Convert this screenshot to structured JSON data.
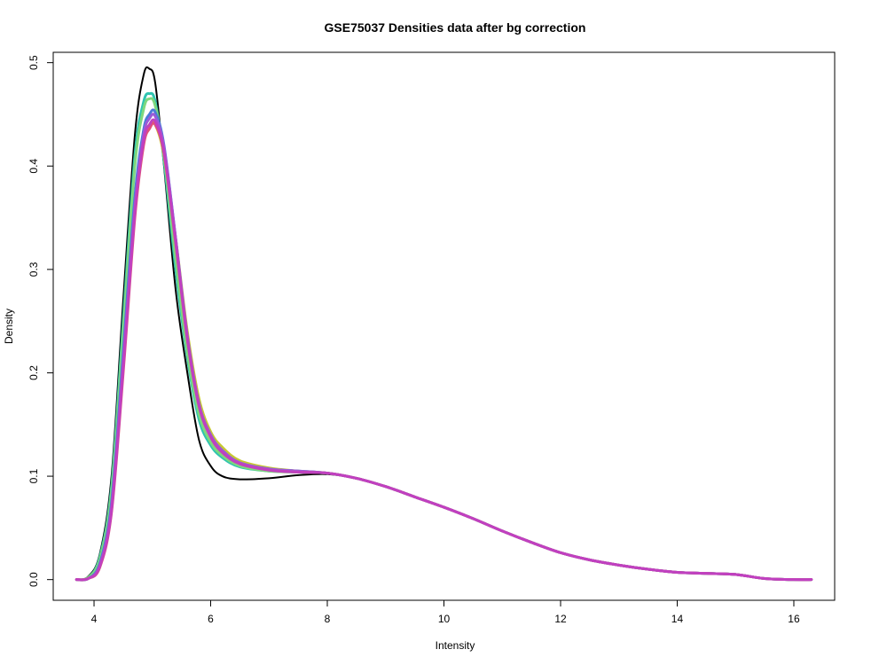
{
  "chart_data": {
    "type": "line",
    "title": "GSE75037 Densities data after bg correction",
    "xlabel": "Intensity",
    "ylabel": "Density",
    "xlim": [
      3.3,
      16.7
    ],
    "ylim": [
      -0.02,
      0.51
    ],
    "x_ticks": [
      4,
      6,
      8,
      10,
      12,
      14,
      16
    ],
    "y_ticks": [
      0.0,
      0.1,
      0.2,
      0.3,
      0.4,
      0.5
    ],
    "grid": false,
    "legend": "none",
    "x": [
      3.7,
      3.9,
      4.1,
      4.3,
      4.5,
      4.7,
      4.85,
      4.95,
      5.05,
      5.2,
      5.4,
      5.6,
      5.8,
      6.0,
      6.2,
      6.5,
      7.0,
      7.5,
      8.0,
      8.5,
      9.0,
      9.5,
      10.0,
      10.5,
      11.0,
      11.5,
      12.0,
      12.5,
      13.0,
      13.5,
      14.0,
      14.5,
      15.0,
      15.5,
      16.0,
      16.3
    ],
    "series": [
      {
        "color": "#000000",
        "values": [
          0.0,
          0.003,
          0.025,
          0.1,
          0.27,
          0.43,
          0.488,
          0.494,
          0.48,
          0.4,
          0.28,
          0.2,
          0.135,
          0.11,
          0.1,
          0.097,
          0.098,
          0.101,
          0.102,
          0.098,
          0.09,
          0.08,
          0.07,
          0.059,
          0.047,
          0.036,
          0.026,
          0.019,
          0.014,
          0.01,
          0.007,
          0.006,
          0.005,
          0.001,
          0.0,
          0.0
        ]
      },
      {
        "color": "#2fc4b0",
        "values": [
          0.0,
          0.002,
          0.022,
          0.09,
          0.25,
          0.41,
          0.462,
          0.47,
          0.462,
          0.405,
          0.3,
          0.215,
          0.155,
          0.13,
          0.118,
          0.109,
          0.105,
          0.104,
          0.103,
          0.098,
          0.09,
          0.08,
          0.07,
          0.059,
          0.047,
          0.036,
          0.026,
          0.019,
          0.014,
          0.01,
          0.007,
          0.006,
          0.005,
          0.001,
          0.0,
          0.0
        ]
      },
      {
        "color": "#7ed87e",
        "values": [
          0.0,
          0.002,
          0.02,
          0.085,
          0.24,
          0.4,
          0.455,
          0.465,
          0.458,
          0.41,
          0.31,
          0.22,
          0.16,
          0.133,
          0.12,
          0.11,
          0.105,
          0.104,
          0.103,
          0.098,
          0.09,
          0.08,
          0.07,
          0.059,
          0.047,
          0.036,
          0.026,
          0.019,
          0.014,
          0.01,
          0.007,
          0.006,
          0.005,
          0.001,
          0.0,
          0.0
        ]
      },
      {
        "color": "#c8c832",
        "values": [
          0.0,
          0.001,
          0.015,
          0.07,
          0.21,
          0.36,
          0.425,
          0.44,
          0.44,
          0.41,
          0.33,
          0.24,
          0.175,
          0.143,
          0.128,
          0.115,
          0.108,
          0.105,
          0.103,
          0.098,
          0.09,
          0.08,
          0.07,
          0.059,
          0.047,
          0.036,
          0.026,
          0.019,
          0.014,
          0.01,
          0.007,
          0.006,
          0.005,
          0.001,
          0.0,
          0.0
        ]
      },
      {
        "color": "#4a7bd8",
        "values": [
          0.0,
          0.001,
          0.016,
          0.075,
          0.22,
          0.37,
          0.435,
          0.45,
          0.452,
          0.42,
          0.33,
          0.235,
          0.17,
          0.14,
          0.125,
          0.113,
          0.107,
          0.105,
          0.103,
          0.098,
          0.09,
          0.08,
          0.07,
          0.059,
          0.047,
          0.036,
          0.026,
          0.019,
          0.014,
          0.01,
          0.007,
          0.006,
          0.005,
          0.001,
          0.0,
          0.0
        ]
      },
      {
        "color": "#9a5ad8",
        "values": [
          0.0,
          0.001,
          0.014,
          0.07,
          0.21,
          0.36,
          0.43,
          0.446,
          0.448,
          0.418,
          0.33,
          0.236,
          0.17,
          0.14,
          0.125,
          0.113,
          0.107,
          0.105,
          0.103,
          0.098,
          0.09,
          0.08,
          0.07,
          0.059,
          0.047,
          0.036,
          0.026,
          0.019,
          0.014,
          0.01,
          0.007,
          0.006,
          0.005,
          0.001,
          0.0,
          0.0
        ]
      },
      {
        "color": "#e0507a",
        "values": [
          0.0,
          0.001,
          0.012,
          0.065,
          0.2,
          0.35,
          0.42,
          0.436,
          0.44,
          0.412,
          0.325,
          0.232,
          0.168,
          0.138,
          0.123,
          0.112,
          0.106,
          0.104,
          0.103,
          0.098,
          0.09,
          0.08,
          0.07,
          0.059,
          0.047,
          0.036,
          0.026,
          0.019,
          0.014,
          0.01,
          0.007,
          0.006,
          0.005,
          0.001,
          0.0,
          0.0
        ]
      },
      {
        "color": "#c040c0",
        "values": [
          0.0,
          0.001,
          0.013,
          0.067,
          0.205,
          0.355,
          0.425,
          0.44,
          0.443,
          0.414,
          0.327,
          0.233,
          0.168,
          0.138,
          0.123,
          0.112,
          0.106,
          0.104,
          0.103,
          0.098,
          0.09,
          0.08,
          0.07,
          0.059,
          0.047,
          0.036,
          0.026,
          0.019,
          0.014,
          0.01,
          0.007,
          0.006,
          0.005,
          0.001,
          0.0,
          0.0
        ]
      }
    ]
  }
}
